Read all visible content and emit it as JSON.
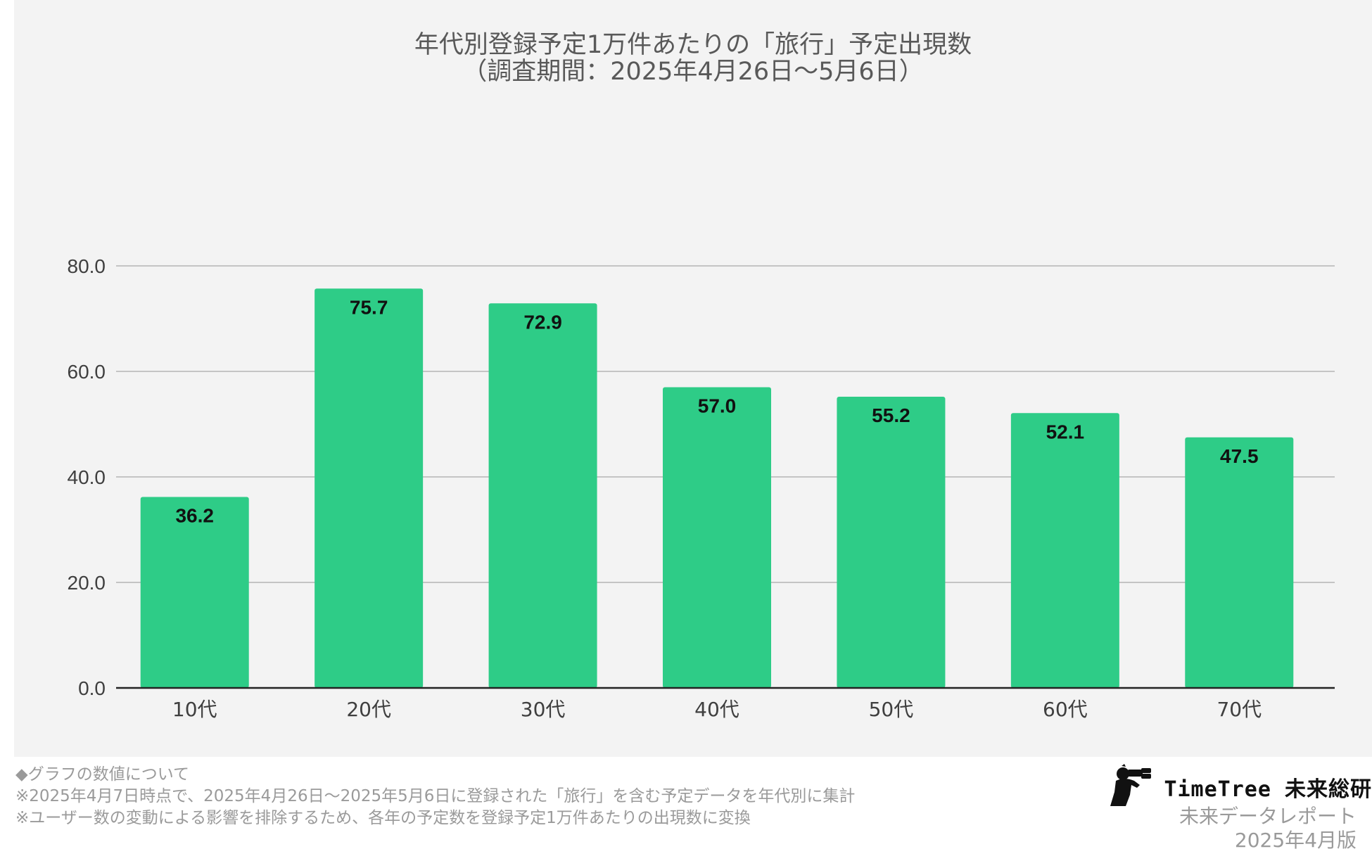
{
  "chart_data": {
    "type": "bar",
    "title": "年代別登録予定1万件あたりの「旅行」予定出現数",
    "subtitle": "（調査期間：2025年4月26日〜5月6日）",
    "categories": [
      "10代",
      "20代",
      "30代",
      "40代",
      "50代",
      "60代",
      "70代"
    ],
    "values": [
      36.2,
      75.7,
      72.9,
      57.0,
      55.2,
      52.1,
      47.5
    ],
    "value_labels": [
      "36.2",
      "75.7",
      "72.9",
      "57.0",
      "55.2",
      "52.1",
      "47.5"
    ],
    "ylim": [
      0,
      80
    ],
    "yticks": [
      "0.0",
      "20.0",
      "40.0",
      "60.0",
      "80.0"
    ],
    "ytick_values": [
      0,
      20,
      40,
      60,
      80
    ],
    "xlabel": "",
    "ylabel": "",
    "grid": true,
    "legend": "none",
    "bar_color": "#2ecc87"
  },
  "notes": {
    "heading": "◆グラフの数値について",
    "line1": "※2025年4月7日時点で、2025年4月26日〜2025年5月6日に登録された「旅行」を含む予定データを年代別に集計",
    "line2": "※ユーザー数の変動による影響を排除するため、各年の予定数を登録予定1万件あたりの出現数に変換"
  },
  "brand": {
    "name": "TimeTree 未来総研",
    "report": "未来データレポート",
    "edition": "2025年4月版",
    "logo_icon": "binoculars-person-icon"
  }
}
